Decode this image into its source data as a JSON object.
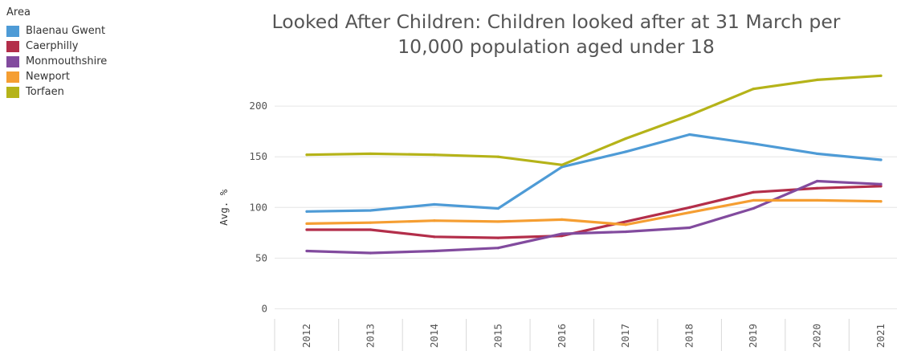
{
  "legend": {
    "title": "Area"
  },
  "chart_data": {
    "type": "line",
    "title": "Looked After Children: Children looked after at 31 March per 10,000 population aged under 18",
    "title_lines": [
      "Looked After Children: Children looked after at 31 March per",
      "10,000 population aged under 18"
    ],
    "xlabel": "",
    "ylabel": "Avg. %",
    "x": [
      "2012",
      "2013",
      "2014",
      "2015",
      "2016",
      "2017",
      "2018",
      "2019",
      "2020",
      "2021"
    ],
    "yticks": [
      0,
      50,
      100,
      150,
      200
    ],
    "ylim": [
      -10,
      235
    ],
    "grid": true,
    "legend_position": "left",
    "series": [
      {
        "name": "Blaenau Gwent",
        "color": "#4E9BD6",
        "values": [
          96,
          97,
          103,
          99,
          140,
          155,
          172,
          163,
          153,
          147
        ]
      },
      {
        "name": "Caerphilly",
        "color": "#B32E4A",
        "values": [
          78,
          78,
          71,
          70,
          72,
          86,
          100,
          115,
          119,
          121
        ]
      },
      {
        "name": "Monmouthshire",
        "color": "#824B9E",
        "values": [
          57,
          55,
          57,
          60,
          74,
          76,
          80,
          99,
          126,
          123
        ]
      },
      {
        "name": "Newport",
        "color": "#F59E32",
        "values": [
          84,
          85,
          87,
          86,
          88,
          83,
          95,
          107,
          107,
          106
        ]
      },
      {
        "name": "Torfaen",
        "color": "#B5B319",
        "values": [
          152,
          153,
          152,
          150,
          142,
          168,
          191,
          217,
          226,
          230
        ]
      }
    ]
  }
}
